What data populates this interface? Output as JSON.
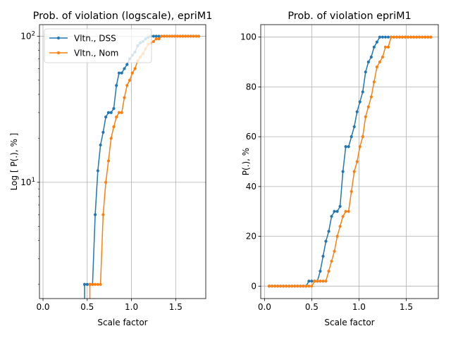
{
  "chart_data": [
    {
      "type": "line",
      "title": "Prob. of violation (logscale), epriM1",
      "xlabel": "Scale factor",
      "ylabel": "Log [ P(.), % ]",
      "yscale": "log",
      "xlim": [
        -0.04,
        1.84
      ],
      "ylim": [
        1.6,
        120
      ],
      "xticks": [
        0.0,
        0.5,
        1.0,
        1.5
      ],
      "xtick_labels": [
        "0.0",
        "0.5",
        "1.0",
        "1.5"
      ],
      "ytick_values": [
        10,
        100
      ],
      "ytick_labels": [
        "10^1",
        "10^2"
      ],
      "grid": true,
      "legend": {
        "placement": "top-left",
        "entries": [
          "Vltn., DSS",
          "Vltn., Nom"
        ]
      },
      "x": [
        0.05,
        0.08,
        0.11,
        0.14,
        0.17,
        0.2,
        0.23,
        0.26,
        0.29,
        0.32,
        0.35,
        0.38,
        0.41,
        0.44,
        0.47,
        0.5,
        0.53,
        0.56,
        0.59,
        0.62,
        0.65,
        0.68,
        0.71,
        0.74,
        0.77,
        0.8,
        0.83,
        0.86,
        0.89,
        0.92,
        0.95,
        0.98,
        1.01,
        1.04,
        1.07,
        1.1,
        1.13,
        1.16,
        1.19,
        1.22,
        1.25,
        1.28,
        1.31,
        1.34,
        1.37,
        1.4,
        1.43,
        1.46,
        1.49,
        1.52,
        1.55,
        1.58,
        1.61,
        1.64,
        1.67,
        1.7,
        1.73,
        1.76
      ],
      "series": [
        {
          "name": "Vltn., DSS",
          "color": "#1f77b4",
          "values": [
            0,
            0,
            0,
            0,
            0,
            0,
            0,
            0,
            0,
            0,
            0,
            0,
            0,
            0,
            2,
            2,
            2,
            2,
            6,
            12,
            18,
            22,
            28,
            30,
            30,
            32,
            46,
            56,
            56,
            60,
            64,
            70,
            74,
            78,
            86,
            90,
            92,
            96,
            98,
            100,
            100,
            100,
            100,
            100,
            100,
            100,
            100,
            100,
            100,
            100,
            100,
            100,
            100,
            100,
            100,
            100,
            100,
            100
          ]
        },
        {
          "name": "Vltn., Nom",
          "color": "#ff7f0e",
          "values": [
            0,
            0,
            0,
            0,
            0,
            0,
            0,
            0,
            0,
            0,
            0,
            0,
            0,
            0,
            0,
            0,
            2,
            2,
            2,
            2,
            2,
            6,
            10,
            14,
            20,
            24,
            28,
            30,
            30,
            38,
            46,
            50,
            56,
            60,
            68,
            72,
            76,
            82,
            88,
            90,
            92,
            96,
            96,
            100,
            100,
            100,
            100,
            100,
            100,
            100,
            100,
            100,
            100,
            100,
            100,
            100,
            100,
            100
          ]
        }
      ]
    },
    {
      "type": "line",
      "title": "Prob. of violation epriM1",
      "xlabel": "Scale factor",
      "ylabel": "P(.), %",
      "yscale": "linear",
      "xlim": [
        -0.04,
        1.84
      ],
      "ylim": [
        -5,
        105
      ],
      "xticks": [
        0.0,
        0.5,
        1.0,
        1.5
      ],
      "xtick_labels": [
        "0.0",
        "0.5",
        "1.0",
        "1.5"
      ],
      "ytick_values": [
        0,
        20,
        40,
        60,
        80,
        100
      ],
      "ytick_labels": [
        "0",
        "20",
        "40",
        "60",
        "80",
        "100"
      ],
      "grid": true,
      "legend": null,
      "x": [
        0.05,
        0.08,
        0.11,
        0.14,
        0.17,
        0.2,
        0.23,
        0.26,
        0.29,
        0.32,
        0.35,
        0.38,
        0.41,
        0.44,
        0.47,
        0.5,
        0.53,
        0.56,
        0.59,
        0.62,
        0.65,
        0.68,
        0.71,
        0.74,
        0.77,
        0.8,
        0.83,
        0.86,
        0.89,
        0.92,
        0.95,
        0.98,
        1.01,
        1.04,
        1.07,
        1.1,
        1.13,
        1.16,
        1.19,
        1.22,
        1.25,
        1.28,
        1.31,
        1.34,
        1.37,
        1.4,
        1.43,
        1.46,
        1.49,
        1.52,
        1.55,
        1.58,
        1.61,
        1.64,
        1.67,
        1.7,
        1.73,
        1.76
      ],
      "series": [
        {
          "name": "Vltn., DSS",
          "color": "#1f77b4",
          "values": [
            0,
            0,
            0,
            0,
            0,
            0,
            0,
            0,
            0,
            0,
            0,
            0,
            0,
            0,
            2,
            2,
            2,
            2,
            6,
            12,
            18,
            22,
            28,
            30,
            30,
            32,
            46,
            56,
            56,
            60,
            64,
            70,
            74,
            78,
            86,
            90,
            92,
            96,
            98,
            100,
            100,
            100,
            100,
            100,
            100,
            100,
            100,
            100,
            100,
            100,
            100,
            100,
            100,
            100,
            100,
            100,
            100,
            100
          ]
        },
        {
          "name": "Vltn., Nom",
          "color": "#ff7f0e",
          "values": [
            0,
            0,
            0,
            0,
            0,
            0,
            0,
            0,
            0,
            0,
            0,
            0,
            0,
            0,
            0,
            0,
            2,
            2,
            2,
            2,
            2,
            6,
            10,
            14,
            20,
            24,
            28,
            30,
            30,
            38,
            46,
            50,
            56,
            60,
            68,
            72,
            76,
            82,
            88,
            90,
            92,
            96,
            96,
            100,
            100,
            100,
            100,
            100,
            100,
            100,
            100,
            100,
            100,
            100,
            100,
            100,
            100,
            100
          ]
        }
      ]
    }
  ]
}
